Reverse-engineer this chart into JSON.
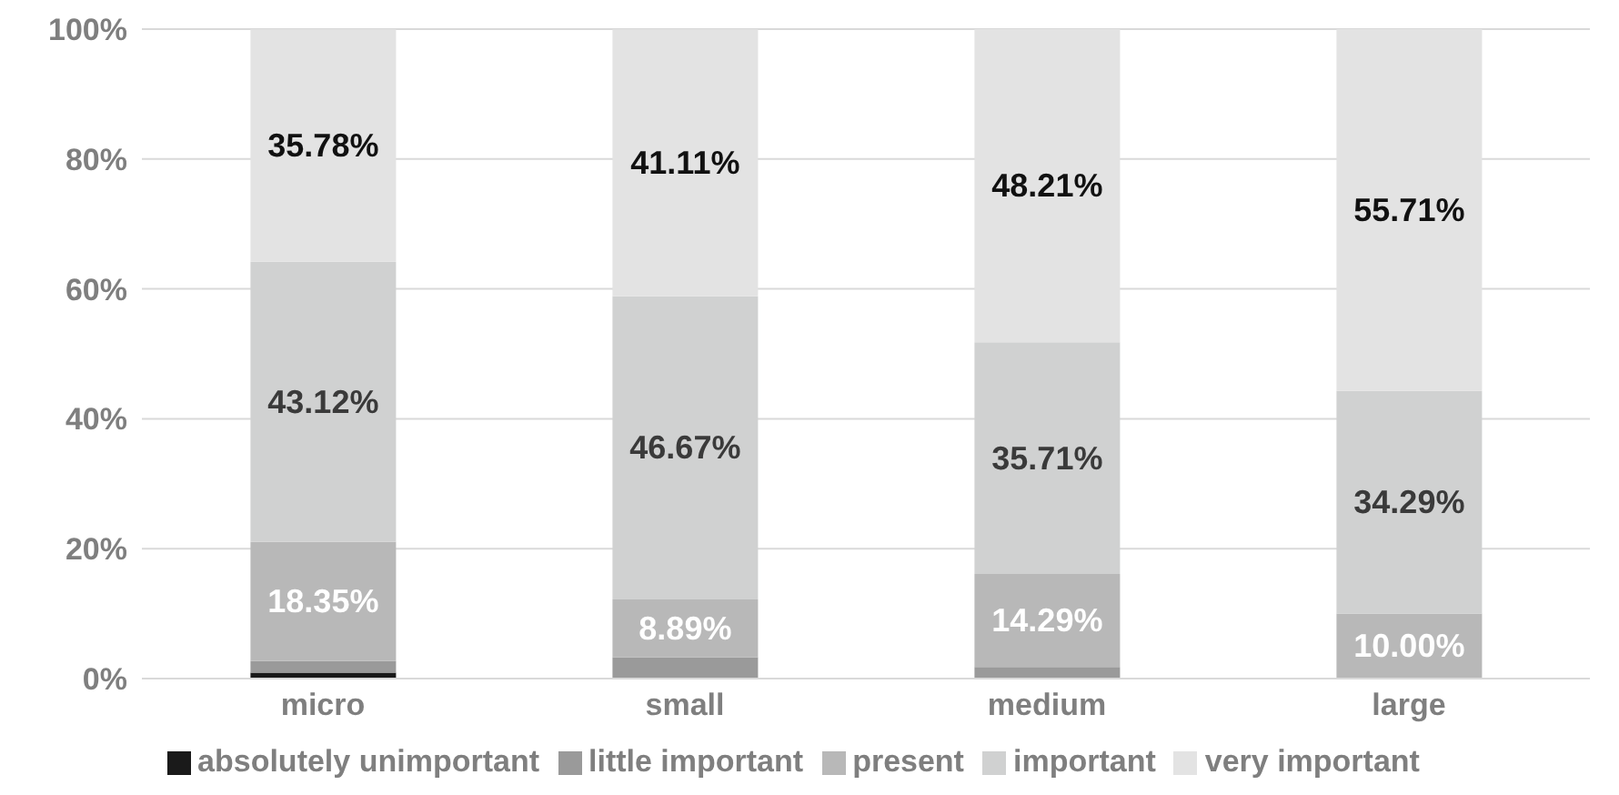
{
  "chart_data": {
    "type": "bar",
    "stacked": true,
    "categories": [
      "micro",
      "small",
      "medium",
      "large"
    ],
    "series": [
      {
        "name": "absolutely unimportant",
        "color": "#1a1a1a",
        "values": [
          0.9,
          0,
          0,
          0
        ]
      },
      {
        "name": "little important",
        "color": "#9a9a9a",
        "values": [
          1.8,
          3.3,
          1.8,
          0
        ]
      },
      {
        "name": "present",
        "color": "#b8b8b8",
        "values": [
          18.35,
          8.89,
          14.29,
          10.0
        ],
        "value_labels": [
          "18.35%",
          "8.89%",
          "14.29%",
          "10.00%"
        ]
      },
      {
        "name": "important",
        "color": "#d0d1d1",
        "values": [
          43.12,
          46.67,
          35.71,
          34.29
        ],
        "value_labels": [
          "43.12%",
          "46.67%",
          "35.71%",
          "34.29%"
        ]
      },
      {
        "name": "very important",
        "color": "#e3e3e3",
        "values": [
          35.78,
          41.11,
          48.21,
          55.71
        ],
        "value_labels": [
          "35.78%",
          "41.11%",
          "48.21%",
          "55.71%"
        ]
      }
    ],
    "ylim": [
      0,
      100
    ],
    "yticks": [
      {
        "value": 0,
        "label": "0%"
      },
      {
        "value": 20,
        "label": "20%"
      },
      {
        "value": 40,
        "label": "40%"
      },
      {
        "value": 60,
        "label": "60%"
      },
      {
        "value": 80,
        "label": "80%"
      },
      {
        "value": 100,
        "label": "100%"
      }
    ],
    "grid": "y",
    "legend": "bottom"
  }
}
